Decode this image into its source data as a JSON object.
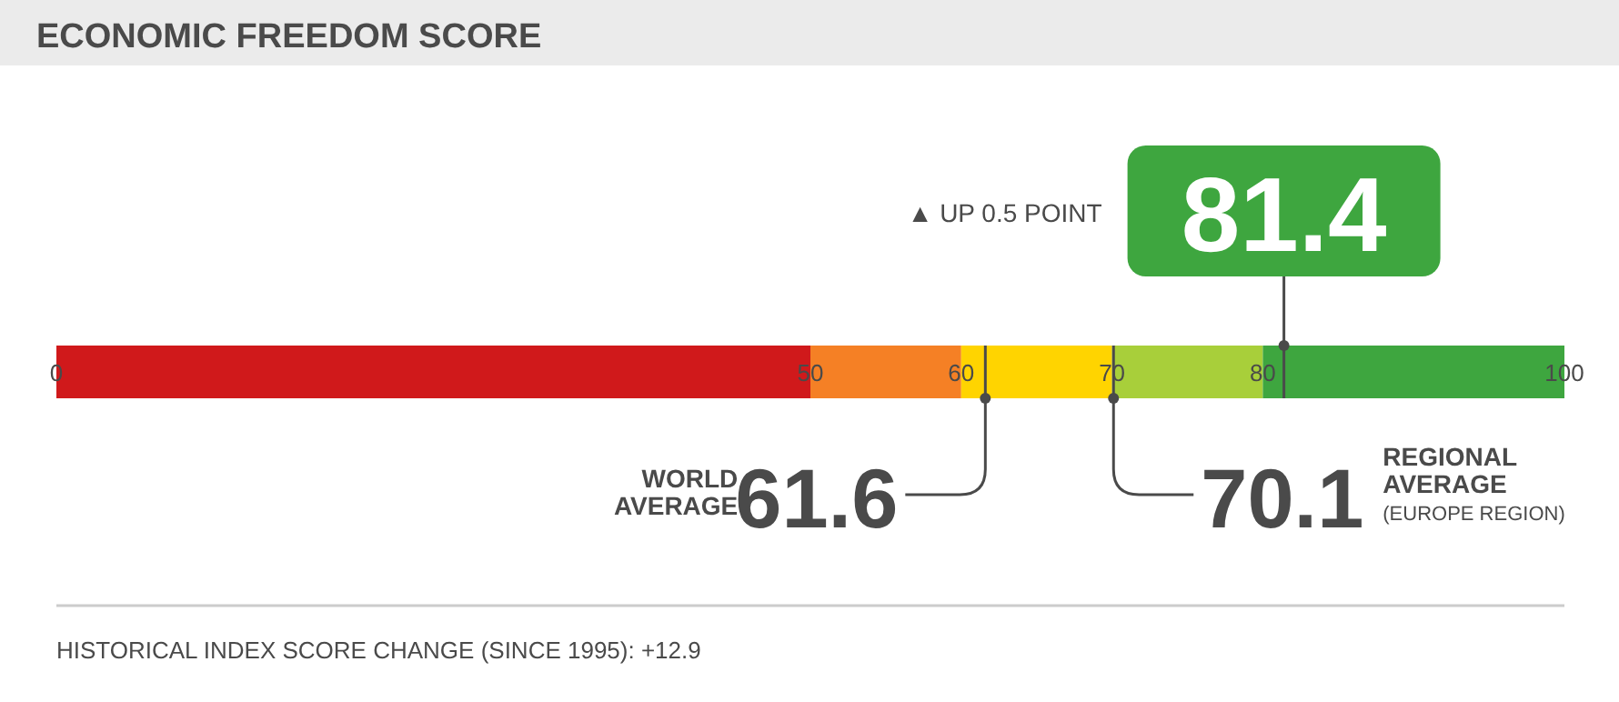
{
  "chart_data": {
    "type": "bar",
    "orientation": "horizontal",
    "stacked": true,
    "title": "ECONOMIC FREEDOM SCORE",
    "categories": [
      null
    ],
    "series": [
      {
        "color": "#d0191b",
        "values": [
          50
        ]
      },
      {
        "color": "#f58025",
        "values": [
          10
        ]
      },
      {
        "color": "#ffd400",
        "values": [
          10
        ]
      },
      {
        "color": "#a8cf3a",
        "values": [
          10
        ]
      },
      {
        "color": "#3ea63f",
        "values": [
          20
        ]
      }
    ],
    "xlim": [
      0,
      100
    ],
    "xticks": [
      0,
      50,
      60,
      70,
      80,
      100
    ],
    "ref_lines": [
      {
        "axis": "x",
        "value": 81.4,
        "label": "81.4",
        "color": "#4a4a4a"
      },
      {
        "axis": "x",
        "value": 61.6,
        "label": "61.6",
        "color": "#4a4a4a"
      },
      {
        "axis": "x",
        "value": 70.1,
        "label": "70.1",
        "color": "#4a4a4a"
      }
    ],
    "annotations": [
      "▲ UP 0.5 POINT",
      "WORLD AVERAGE",
      "REGIONAL AVERAGE",
      "(EUROPE REGION)",
      "HISTORICAL INDEX SCORE CHANGE (SINCE 1995): +12.9"
    ]
  }
}
